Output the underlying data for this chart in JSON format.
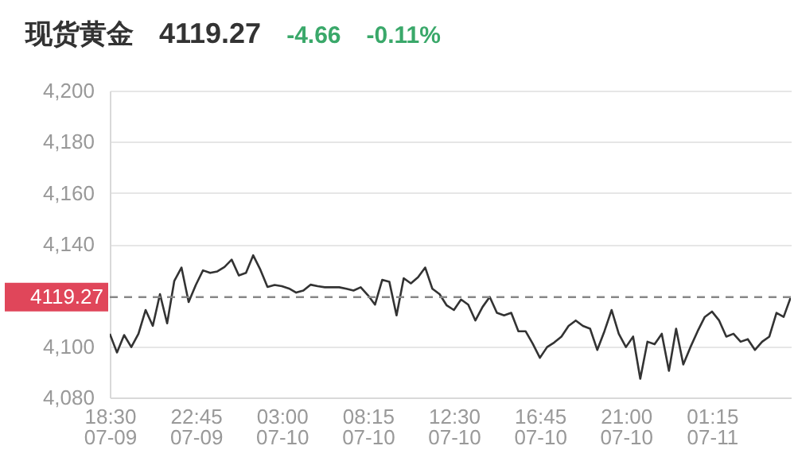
{
  "chart_data": {
    "type": "line",
    "title": "现货黄金",
    "annotations": [
      "4119.27",
      "-4.66",
      "-0.11%"
    ],
    "categories": [
      "18:30\n07-09",
      null,
      null,
      null,
      null,
      null,
      null,
      null,
      null,
      null,
      null,
      null,
      "22:45\n07-09",
      null,
      null,
      null,
      null,
      null,
      null,
      null,
      null,
      null,
      null,
      null,
      "03:00\n07-10",
      null,
      null,
      null,
      null,
      null,
      null,
      null,
      null,
      null,
      null,
      null,
      "08:15\n07-10",
      null,
      null,
      null,
      null,
      null,
      null,
      null,
      null,
      null,
      null,
      null,
      "12:30\n07-10",
      null,
      null,
      null,
      null,
      null,
      null,
      null,
      null,
      null,
      null,
      null,
      "16:45\n07-10",
      null,
      null,
      null,
      null,
      null,
      null,
      null,
      null,
      null,
      null,
      null,
      "21:00\n07-10",
      null,
      null,
      null,
      null,
      null,
      null,
      null,
      null,
      null,
      null,
      null,
      "01:15\n07-11",
      null,
      null,
      null,
      null,
      null,
      null,
      null,
      null,
      null,
      null,
      null
    ],
    "ylim": [
      4080,
      4200
    ],
    "yticks": [
      {
        "value": 4080,
        "label": "4,080"
      },
      {
        "value": 4100,
        "label": "4,100"
      },
      {
        "value": 4140,
        "label": "4,140"
      },
      {
        "value": 4160,
        "label": "4,160"
      },
      {
        "value": 4180,
        "label": "4,180"
      },
      {
        "value": 4200,
        "label": "4,200"
      }
    ],
    "grid": "y",
    "ref_lines": [
      {
        "axis": "y",
        "value": 4119.27,
        "label": "4119.27",
        "line_style": "dashed"
      }
    ],
    "series": [
      {
        "color": "#333333",
        "values": [
          4104.9,
          4097.6,
          4104.4,
          4099.7,
          4104.9,
          4114.2,
          4108,
          4120.4,
          4109,
          4125.6,
          4130.8,
          4117.3,
          4124,
          4129.7,
          4128.7,
          4129.3,
          4131,
          4133.9,
          4127.7,
          4128.7,
          4135.6,
          4130,
          4123.2,
          4124,
          4123.5,
          4122.6,
          4121,
          4121.8,
          4124.1,
          4123.5,
          4123.1,
          4123.1,
          4123.1,
          4122.5,
          4121.8,
          4123.1,
          4120,
          4116.3,
          4126,
          4125.2,
          4112.1,
          4126.6,
          4124.6,
          4127,
          4130.8,
          4122.5,
          4120.4,
          4116,
          4114.2,
          4118.3,
          4116.3,
          4110.1,
          4115.4,
          4119.3,
          4113.1,
          4112.1,
          4113.1,
          4105.9,
          4105.9,
          4101,
          4095.5,
          4099.7,
          4101.5,
          4103.8,
          4108,
          4110.1,
          4108,
          4106.9,
          4098.6,
          4105.9,
          4114.2,
          4104.9,
          4099.7,
          4103.8,
          4087.3,
          4101.8,
          4100.8,
          4104.9,
          4090.4,
          4106.9,
          4092.9,
          4099.7,
          4105.9,
          4111.5,
          4113.6,
          4110.1,
          4103.8,
          4104.9,
          4101.8,
          4102.8,
          4098.6,
          4101.8,
          4103.8,
          4113.1,
          4111.5,
          4119.3
        ]
      }
    ]
  }
}
